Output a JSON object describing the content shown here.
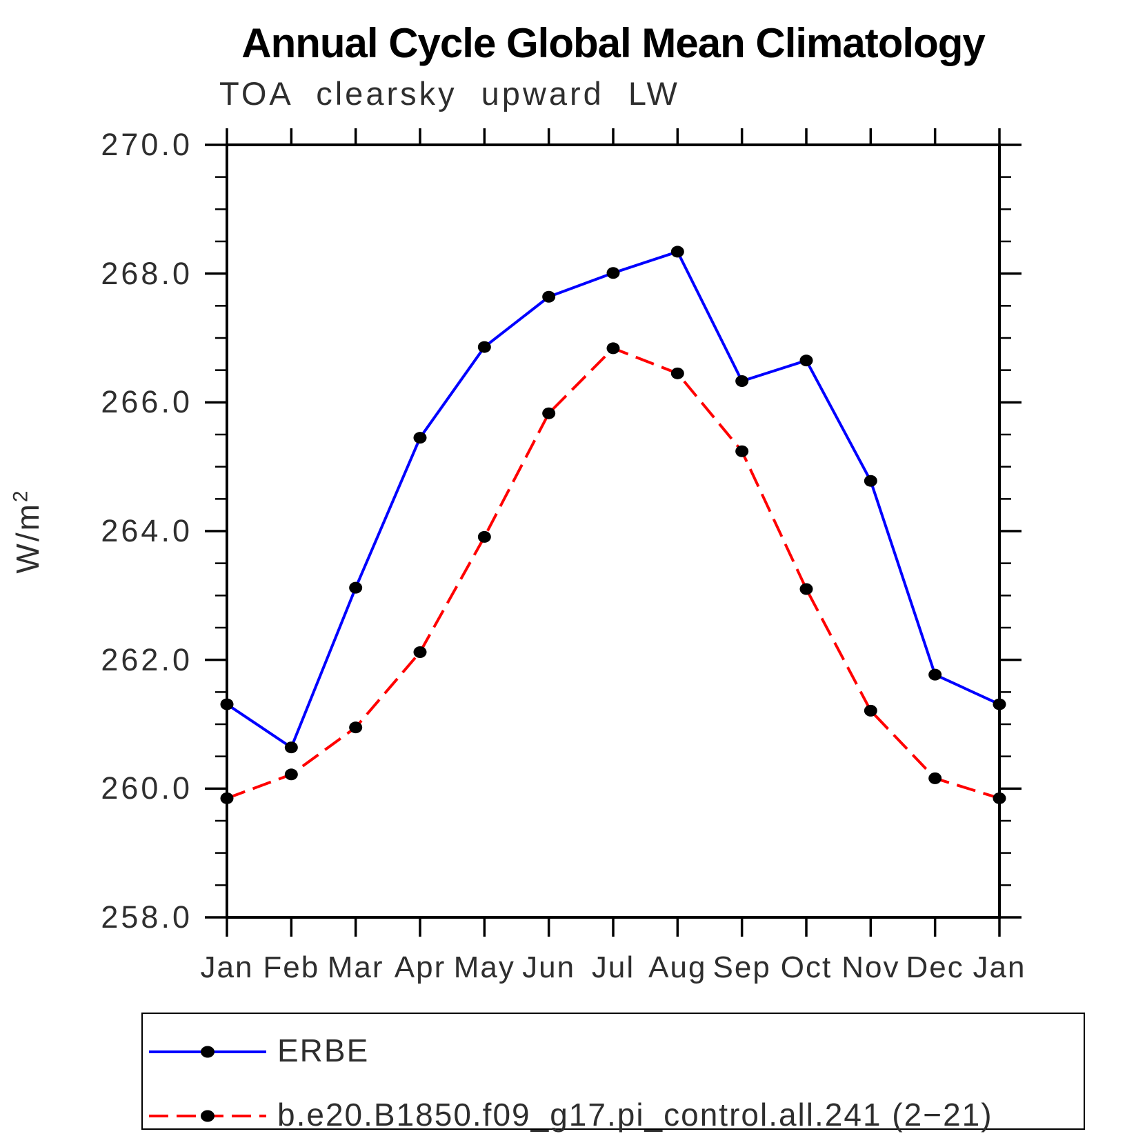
{
  "title": "Annual Cycle Global Mean Climatology",
  "subtitle": "TOA clearsky upward LW",
  "y_axis": {
    "label": "W/m²",
    "unit_base": "W/m",
    "unit_exp": "2",
    "min": 258.0,
    "max": 270.0,
    "major_step": 2.0,
    "minor_step": 0.5,
    "tick_labels": [
      "270.0",
      "268.0",
      "266.0",
      "264.0",
      "262.0",
      "260.0",
      "258.0"
    ]
  },
  "x_axis": {
    "tick_labels": [
      "Jan",
      "Feb",
      "Mar",
      "Apr",
      "May",
      "Jun",
      "Jul",
      "Aug",
      "Sep",
      "Oct",
      "Nov",
      "Dec",
      "Jan"
    ]
  },
  "legend": [
    {
      "label": "ERBE",
      "color": "#0000ff",
      "style": "solid"
    },
    {
      "label": "b.e20.B1850.f09_g17.pi_control.all.241 (2−21)",
      "color": "#ff0000",
      "style": "dashed"
    }
  ],
  "colors": {
    "erbe_line": "#0000ff",
    "model_line": "#ff0000",
    "marker": "#000000",
    "axis": "#000000",
    "background": "#ffffff"
  },
  "chart_data": {
    "type": "line",
    "title": "Annual Cycle Global Mean Climatology",
    "subtitle": "TOA clearsky upward LW",
    "ylabel": "W/m²",
    "xlabel": "",
    "ylim": [
      258.0,
      270.0
    ],
    "grid": false,
    "legend_position": "bottom",
    "categories": [
      "Jan",
      "Feb",
      "Mar",
      "Apr",
      "May",
      "Jun",
      "Jul",
      "Aug",
      "Sep",
      "Oct",
      "Nov",
      "Dec",
      "Jan"
    ],
    "series": [
      {
        "name": "ERBE",
        "color": "#0000ff",
        "line_style": "solid",
        "marker": "filled-circle",
        "values": [
          261.31,
          260.64,
          263.12,
          265.45,
          266.86,
          267.64,
          268.01,
          268.34,
          266.33,
          266.65,
          264.78,
          261.77,
          261.31
        ]
      },
      {
        "name": "b.e20.B1850.f09_g17.pi_control.all.241 (2−21)",
        "color": "#ff0000",
        "line_style": "dashed",
        "marker": "filled-circle",
        "values": [
          259.85,
          260.22,
          260.95,
          262.12,
          263.91,
          265.83,
          266.84,
          266.45,
          265.24,
          263.1,
          261.21,
          260.16,
          259.85
        ]
      }
    ]
  }
}
